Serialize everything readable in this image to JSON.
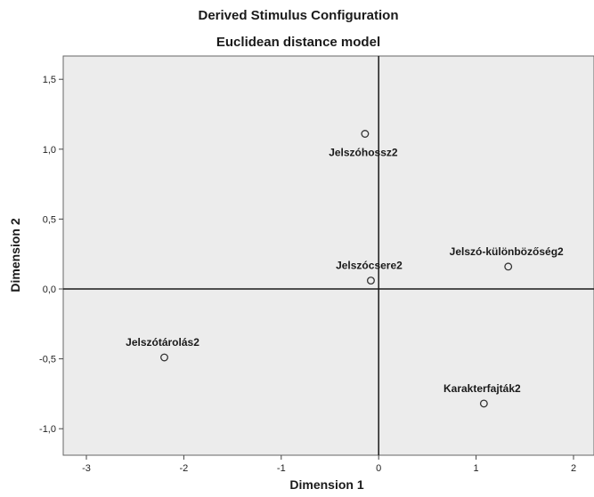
{
  "chart_data": {
    "type": "scatter",
    "title": "Derived Stimulus Configuration",
    "subtitle": "Euclidean distance model",
    "xlabel": "Dimension 1",
    "ylabel": "Dimension 2",
    "xlim": [
      -3.3,
      2.2
    ],
    "ylim": [
      -1.2,
      1.65
    ],
    "x_ticks": [
      -3,
      -2,
      -1,
      0,
      1,
      2
    ],
    "y_ticks": [
      -1.0,
      -0.5,
      0.0,
      0.5,
      1.0,
      1.5
    ],
    "x_tick_labels": [
      "-3",
      "-2",
      "-1",
      "0",
      "1",
      "2"
    ],
    "y_tick_labels": [
      "-1,0",
      "-0,5",
      "0,0",
      "0,5",
      "1,0",
      "1,5"
    ],
    "grid": false,
    "reference_lines": {
      "x": 0,
      "y": 0
    },
    "points": [
      {
        "label": "Jelszóhossz2",
        "x": -0.14,
        "y": 1.11,
        "label_side": "below"
      },
      {
        "label": "Jelszócsere2",
        "x": -0.08,
        "y": 0.06,
        "label_side": "above"
      },
      {
        "label": "Jelszó-különbözőség2",
        "x": 1.33,
        "y": 0.16,
        "label_side": "above"
      },
      {
        "label": "Jelszótárolás2",
        "x": -2.2,
        "y": -0.49,
        "label_side": "above"
      },
      {
        "label": "Karakterfajták2",
        "x": 1.08,
        "y": -0.82,
        "label_side": "above"
      }
    ],
    "colors": {
      "plot_background": "#ececec",
      "axis_line": "#1a1a1a",
      "marker_edge": "#333333"
    }
  }
}
